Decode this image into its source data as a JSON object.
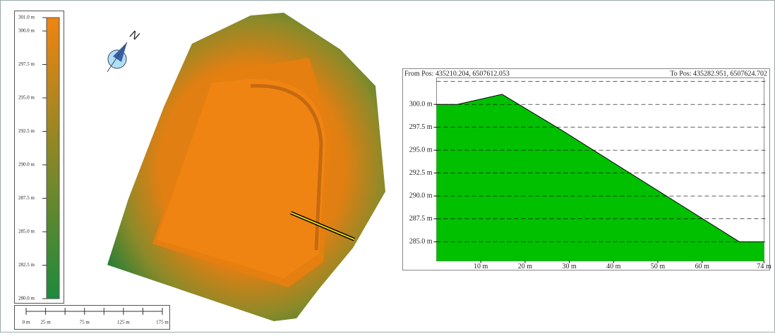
{
  "legend": {
    "range": [
      280,
      301
    ],
    "colors": [
      "#1d8a3c",
      "#f08412"
    ],
    "ticks": [
      {
        "value": 301,
        "label": "301.0 m"
      },
      {
        "value": 300,
        "label": "300.0 m"
      },
      {
        "value": 297.5,
        "label": "297.5 m"
      },
      {
        "value": 295,
        "label": "295.0 m"
      },
      {
        "value": 292.5,
        "label": "292.5 m"
      },
      {
        "value": 290,
        "label": "290.0 m"
      },
      {
        "value": 287.5,
        "label": "287.5 m"
      },
      {
        "value": 285,
        "label": "285.0 m"
      },
      {
        "value": 282.5,
        "label": "282.5 m"
      },
      {
        "value": 280,
        "label": "280.0 m"
      }
    ]
  },
  "scale_bar": {
    "range": [
      0,
      175
    ],
    "ticks": [
      {
        "value": 0,
        "label": "0 m"
      },
      {
        "value": 25,
        "label": "25 m"
      },
      {
        "value": 75,
        "label": "75 m"
      },
      {
        "value": 125,
        "label": "125 m"
      },
      {
        "value": 175,
        "label": "175 m"
      }
    ],
    "minor_ticks": [
      50,
      100,
      150
    ]
  },
  "north_label": "N",
  "chart_data": {
    "type": "area",
    "from_label": "From Pos: 435210.204, 6507612.053",
    "to_label": "To Pos: 435282.951, 6507624.702",
    "x": [
      0,
      4.7,
      14.8,
      28.2,
      68.4,
      74
    ],
    "values": [
      300,
      300,
      301.1,
      297.2,
      285,
      285
    ],
    "color": "#00c000",
    "xlim": [
      0,
      74
    ],
    "ylim": [
      282.9,
      302.9
    ],
    "xticks": [
      {
        "value": 10,
        "label": "10 m"
      },
      {
        "value": 20,
        "label": "20 m"
      },
      {
        "value": 30,
        "label": "30 m"
      },
      {
        "value": 40,
        "label": "40 m"
      },
      {
        "value": 50,
        "label": "50 m"
      },
      {
        "value": 60,
        "label": "60 m"
      },
      {
        "value": 74,
        "label": "74 m"
      }
    ],
    "yticks": [
      {
        "value": 285,
        "label": "285.0 m"
      },
      {
        "value": 287.5,
        "label": "287.5 m"
      },
      {
        "value": 290,
        "label": "290.0 m"
      },
      {
        "value": 292.5,
        "label": "292.5 m"
      },
      {
        "value": 295,
        "label": "295.0 m"
      },
      {
        "value": 297.5,
        "label": "297.5 m"
      },
      {
        "value": 300,
        "label": "300.0 m"
      },
      {
        "value": 302.5,
        "label": null
      }
    ],
    "grid": true
  }
}
